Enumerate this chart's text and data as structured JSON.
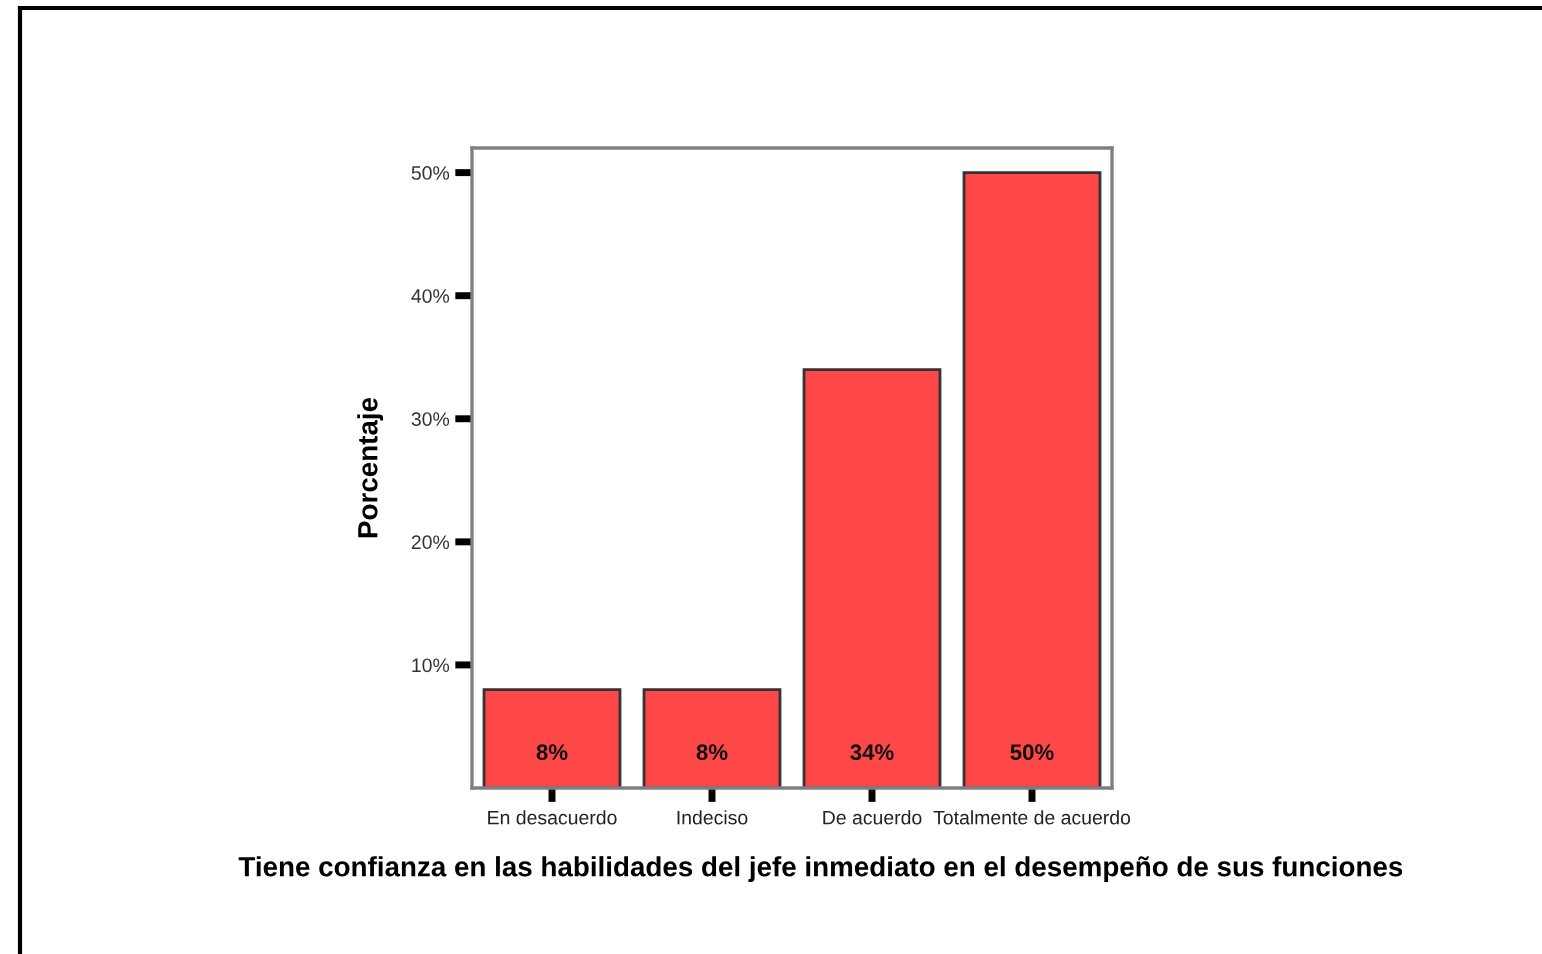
{
  "chart_data": {
    "type": "bar",
    "xlabel": "Tiene confianza en las habilidades del jefe inmediato en el desempeño de sus funciones",
    "ylabel": "Porcentaje",
    "categories": [
      "En desacuerdo",
      "Indeciso",
      "De acuerdo",
      "Totalmente de acuerdo"
    ],
    "values": [
      8,
      8,
      34,
      50
    ],
    "value_labels": [
      "8%",
      "8%",
      "34%",
      "50%"
    ],
    "color": "#ff4747",
    "ylim": [
      0,
      52
    ],
    "yticks": [
      {
        "value": 10,
        "label": "10%"
      },
      {
        "value": 20,
        "label": "20%"
      },
      {
        "value": 30,
        "label": "30%"
      },
      {
        "value": 40,
        "label": "40%"
      },
      {
        "value": 50,
        "label": "50%"
      }
    ]
  }
}
